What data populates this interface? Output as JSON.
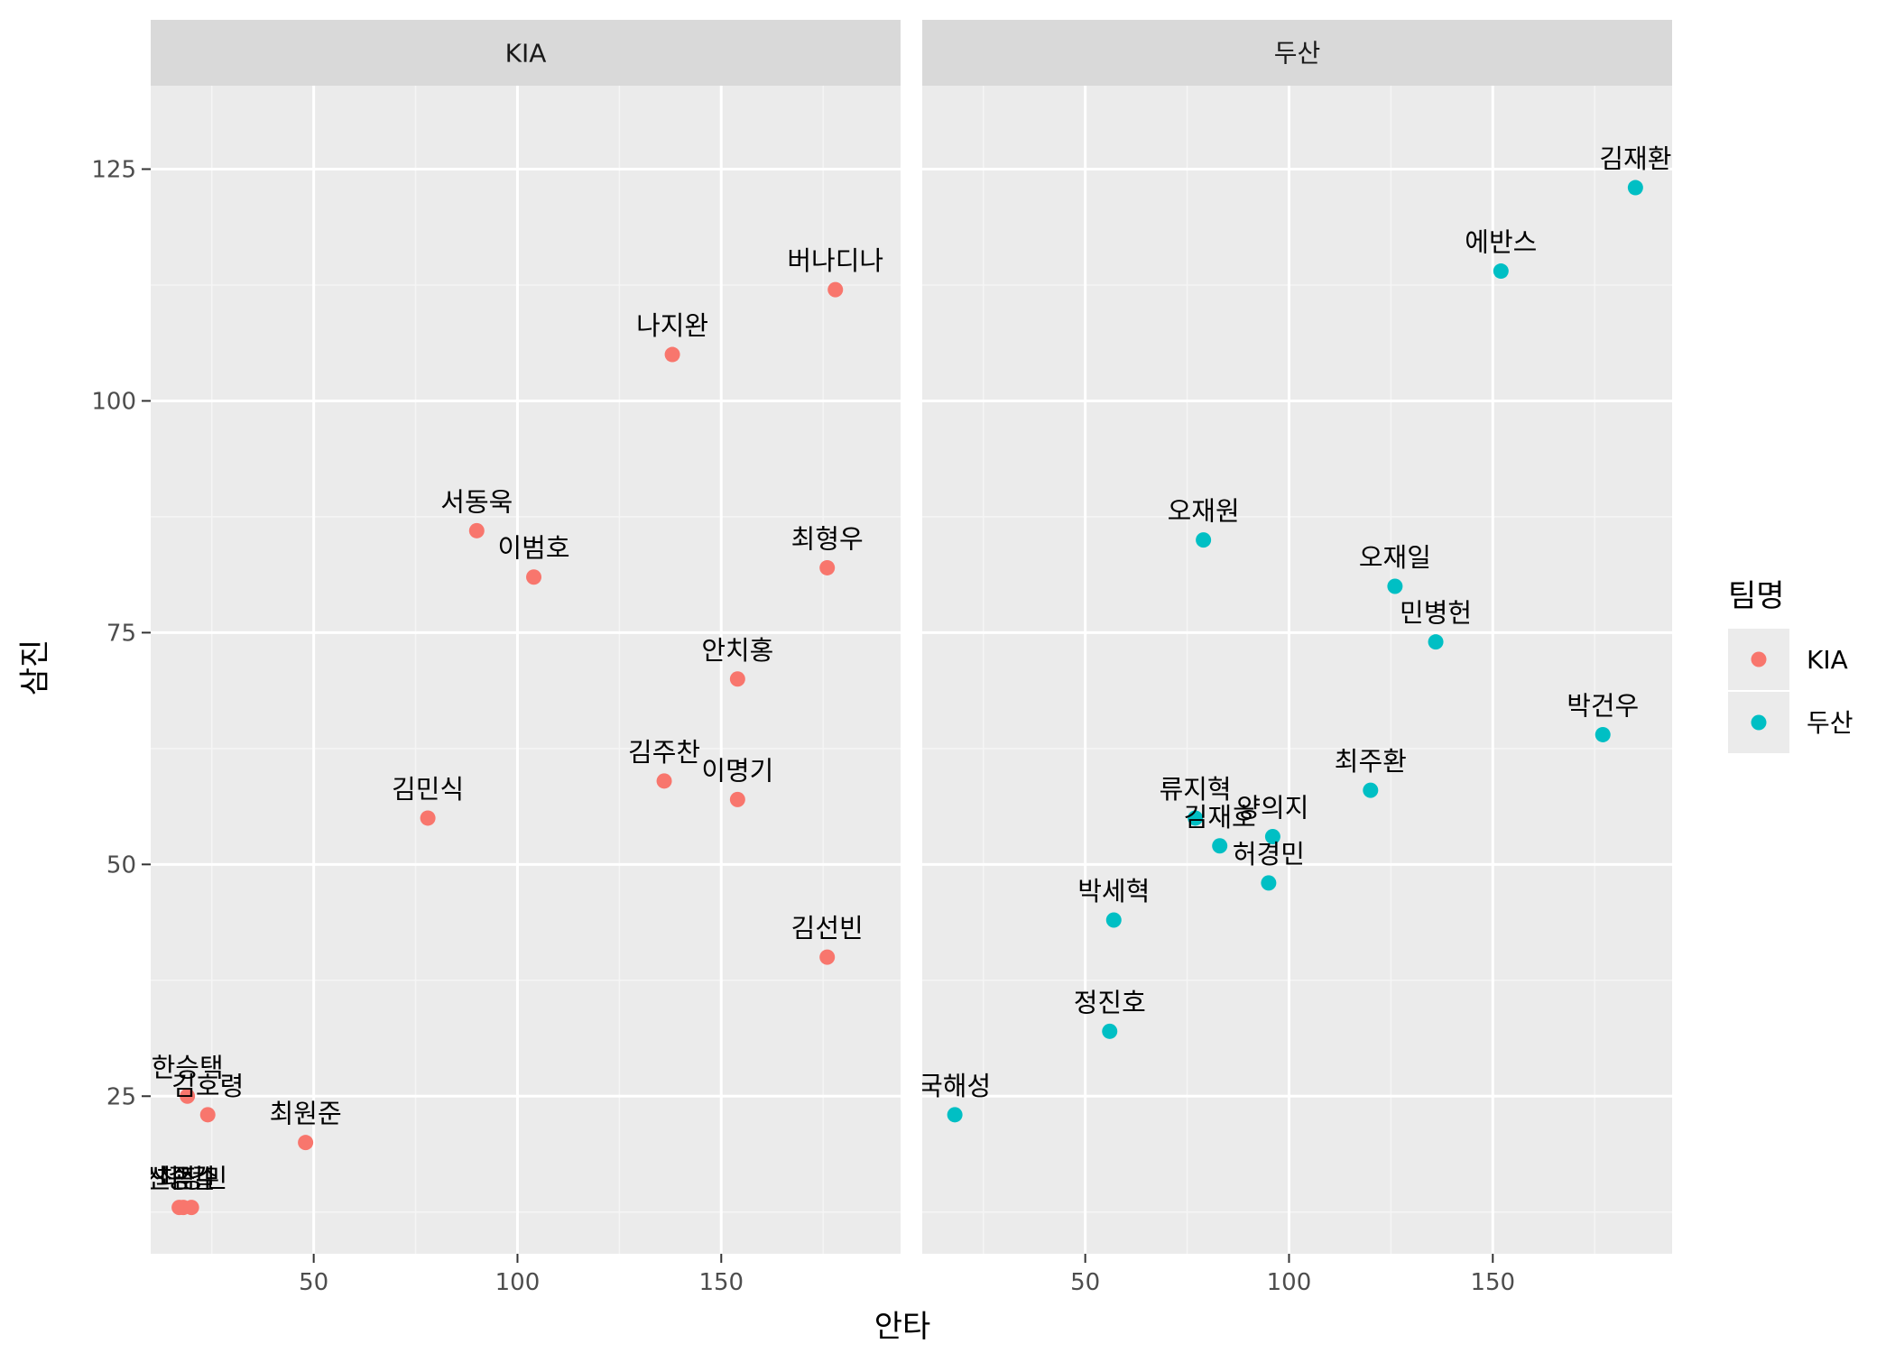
{
  "chart_data": {
    "type": "scatter",
    "xlabel": "안타",
    "ylabel": "삼진",
    "xlim": [
      10,
      194
    ],
    "ylim": [
      8,
      134
    ],
    "x_ticks": [
      50,
      100,
      150
    ],
    "y_ticks": [
      25,
      50,
      75,
      100,
      125
    ],
    "grid": true,
    "legend": {
      "title": "팀명",
      "placement": "right"
    },
    "colors": {
      "KIA": "#F8766D",
      "두산": "#00BFC4"
    },
    "panels": [
      {
        "name": "KIA",
        "points": [
          {
            "label": "버나디나",
            "x": 178,
            "y": 112
          },
          {
            "label": "나지완",
            "x": 138,
            "y": 105
          },
          {
            "label": "서동욱",
            "x": 90,
            "y": 86
          },
          {
            "label": "이범호",
            "x": 104,
            "y": 81
          },
          {
            "label": "최형우",
            "x": 176,
            "y": 82
          },
          {
            "label": "안치홍",
            "x": 154,
            "y": 70
          },
          {
            "label": "김주찬",
            "x": 136,
            "y": 59
          },
          {
            "label": "이명기",
            "x": 154,
            "y": 57
          },
          {
            "label": "김민식",
            "x": 78,
            "y": 55
          },
          {
            "label": "김선빈",
            "x": 176,
            "y": 40
          },
          {
            "label": "한승택",
            "x": 19,
            "y": 25
          },
          {
            "label": "신종길",
            "x": 17,
            "y": 13
          },
          {
            "label": "김호령",
            "x": 24,
            "y": 23
          },
          {
            "label": "최원준",
            "x": 48,
            "y": 20
          },
          {
            "label": "신범수",
            "x": 18,
            "y": 13
          },
          {
            "label": "최정민",
            "x": 20,
            "y": 13
          }
        ]
      },
      {
        "name": "두산",
        "points": [
          {
            "label": "김재환",
            "x": 185,
            "y": 123
          },
          {
            "label": "에반스",
            "x": 152,
            "y": 114
          },
          {
            "label": "오재원",
            "x": 79,
            "y": 85
          },
          {
            "label": "오재일",
            "x": 126,
            "y": 80
          },
          {
            "label": "민병헌",
            "x": 136,
            "y": 74
          },
          {
            "label": "박건우",
            "x": 177,
            "y": 64
          },
          {
            "label": "최주환",
            "x": 120,
            "y": 58
          },
          {
            "label": "류지혁",
            "x": 77,
            "y": 55
          },
          {
            "label": "양의지",
            "x": 96,
            "y": 53
          },
          {
            "label": "김재호",
            "x": 83,
            "y": 52
          },
          {
            "label": "허경민",
            "x": 95,
            "y": 48
          },
          {
            "label": "박세혁",
            "x": 57,
            "y": 44
          },
          {
            "label": "정진호",
            "x": 56,
            "y": 32
          },
          {
            "label": "국해성",
            "x": 18,
            "y": 23
          }
        ]
      }
    ]
  }
}
